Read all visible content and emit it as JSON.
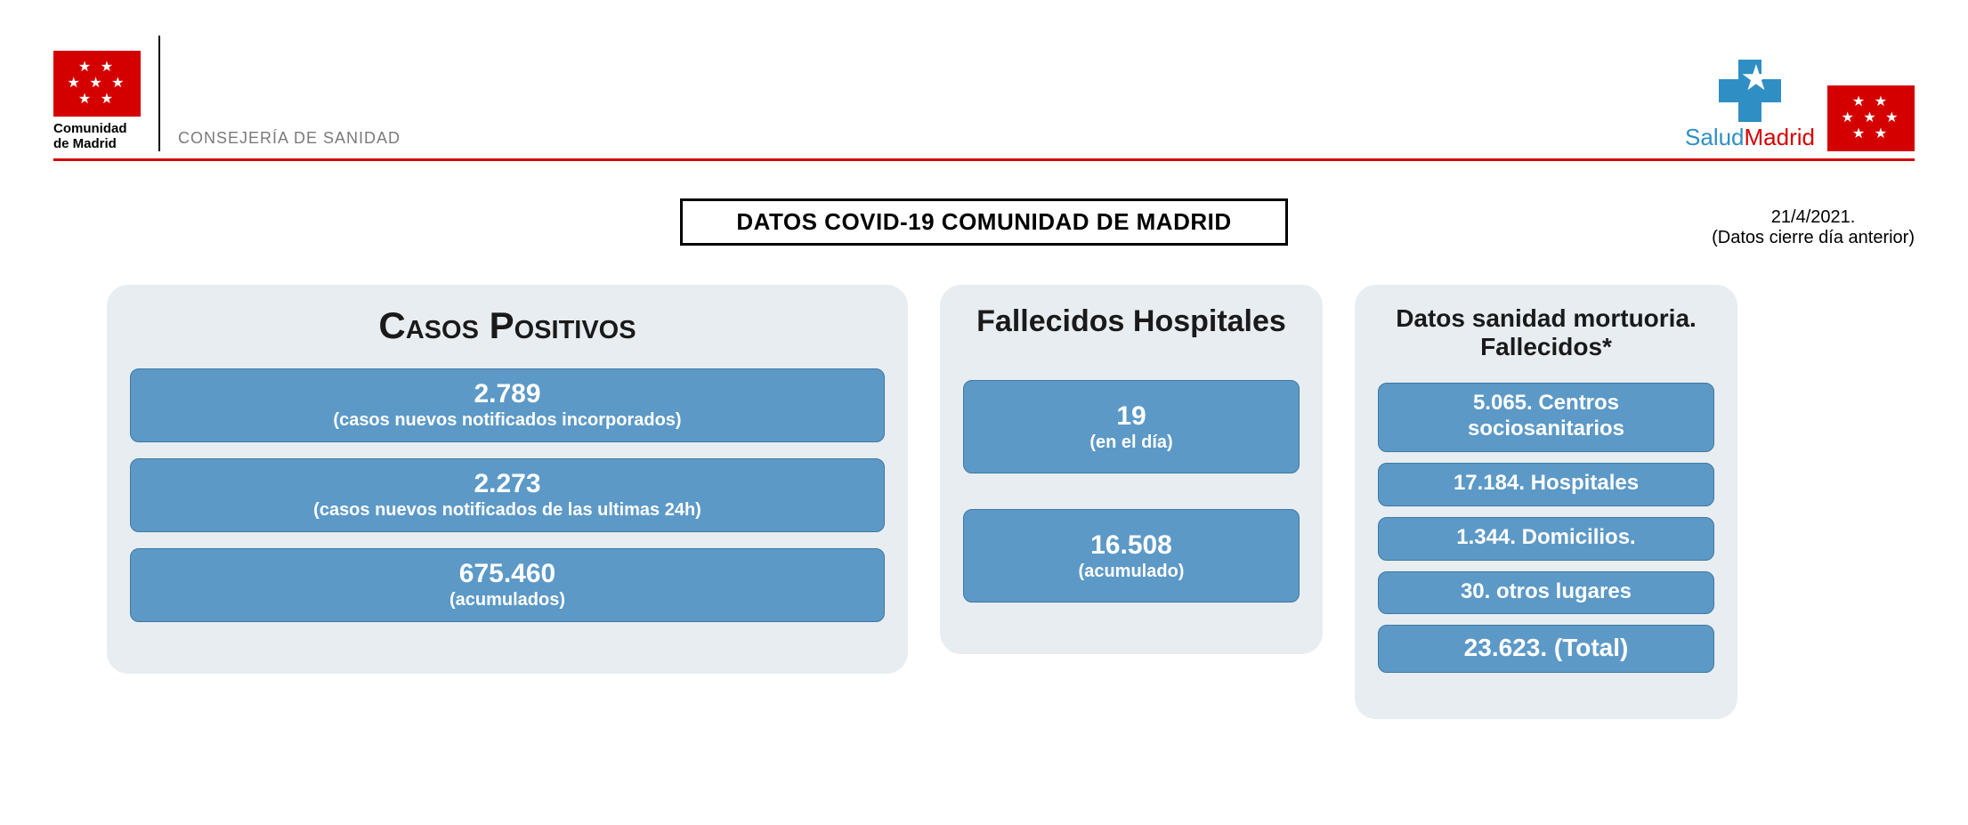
{
  "colors": {
    "madrid_red": "#d40000",
    "panel_bg": "#e7edf1",
    "tile_bg": "#5c99c7",
    "tile_border": "#3f79a3",
    "salud_blue": "#2f8fc4",
    "text_grey": "#7a7a7a",
    "rule_red": "#d40000"
  },
  "header": {
    "flag_caption_line1": "Comunidad",
    "flag_caption_line2": "de Madrid",
    "department": "CONSEJERÍA DE SANIDAD",
    "salud_word1": "Salud",
    "salud_word2": "Madrid"
  },
  "title": "DATOS COVID-19 COMUNIDAD DE MADRID",
  "date_line1": "21/4/2021.",
  "date_line2": "(Datos cierre día anterior)",
  "casos": {
    "title": "Casos Positivos",
    "tiles": [
      {
        "value": "2.789",
        "label": "(casos nuevos notificados incorporados)"
      },
      {
        "value": "2.273",
        "label": "(casos nuevos notificados de las ultimas 24h)"
      },
      {
        "value": "675.460",
        "label": "(acumulados)"
      }
    ]
  },
  "fallecidos": {
    "title": "Fallecidos Hospitales",
    "tiles": [
      {
        "value": "19",
        "label": "(en el día)"
      },
      {
        "value": "16.508",
        "label": "(acumulado)"
      }
    ]
  },
  "mortuoria": {
    "title_line1": "Datos sanidad mortuoria.",
    "title_line2": "Fallecidos*",
    "tiles": [
      {
        "text_line1": "5.065. Centros",
        "text_line2": "sociosanitarios"
      },
      {
        "text_line1": "17.184. Hospitales",
        "text_line2": ""
      },
      {
        "text_line1": "1.344. Domicilios.",
        "text_line2": ""
      },
      {
        "text_line1": "30. otros lugares",
        "text_line2": ""
      },
      {
        "text_line1": "23.623. (Total)",
        "text_line2": ""
      }
    ]
  }
}
